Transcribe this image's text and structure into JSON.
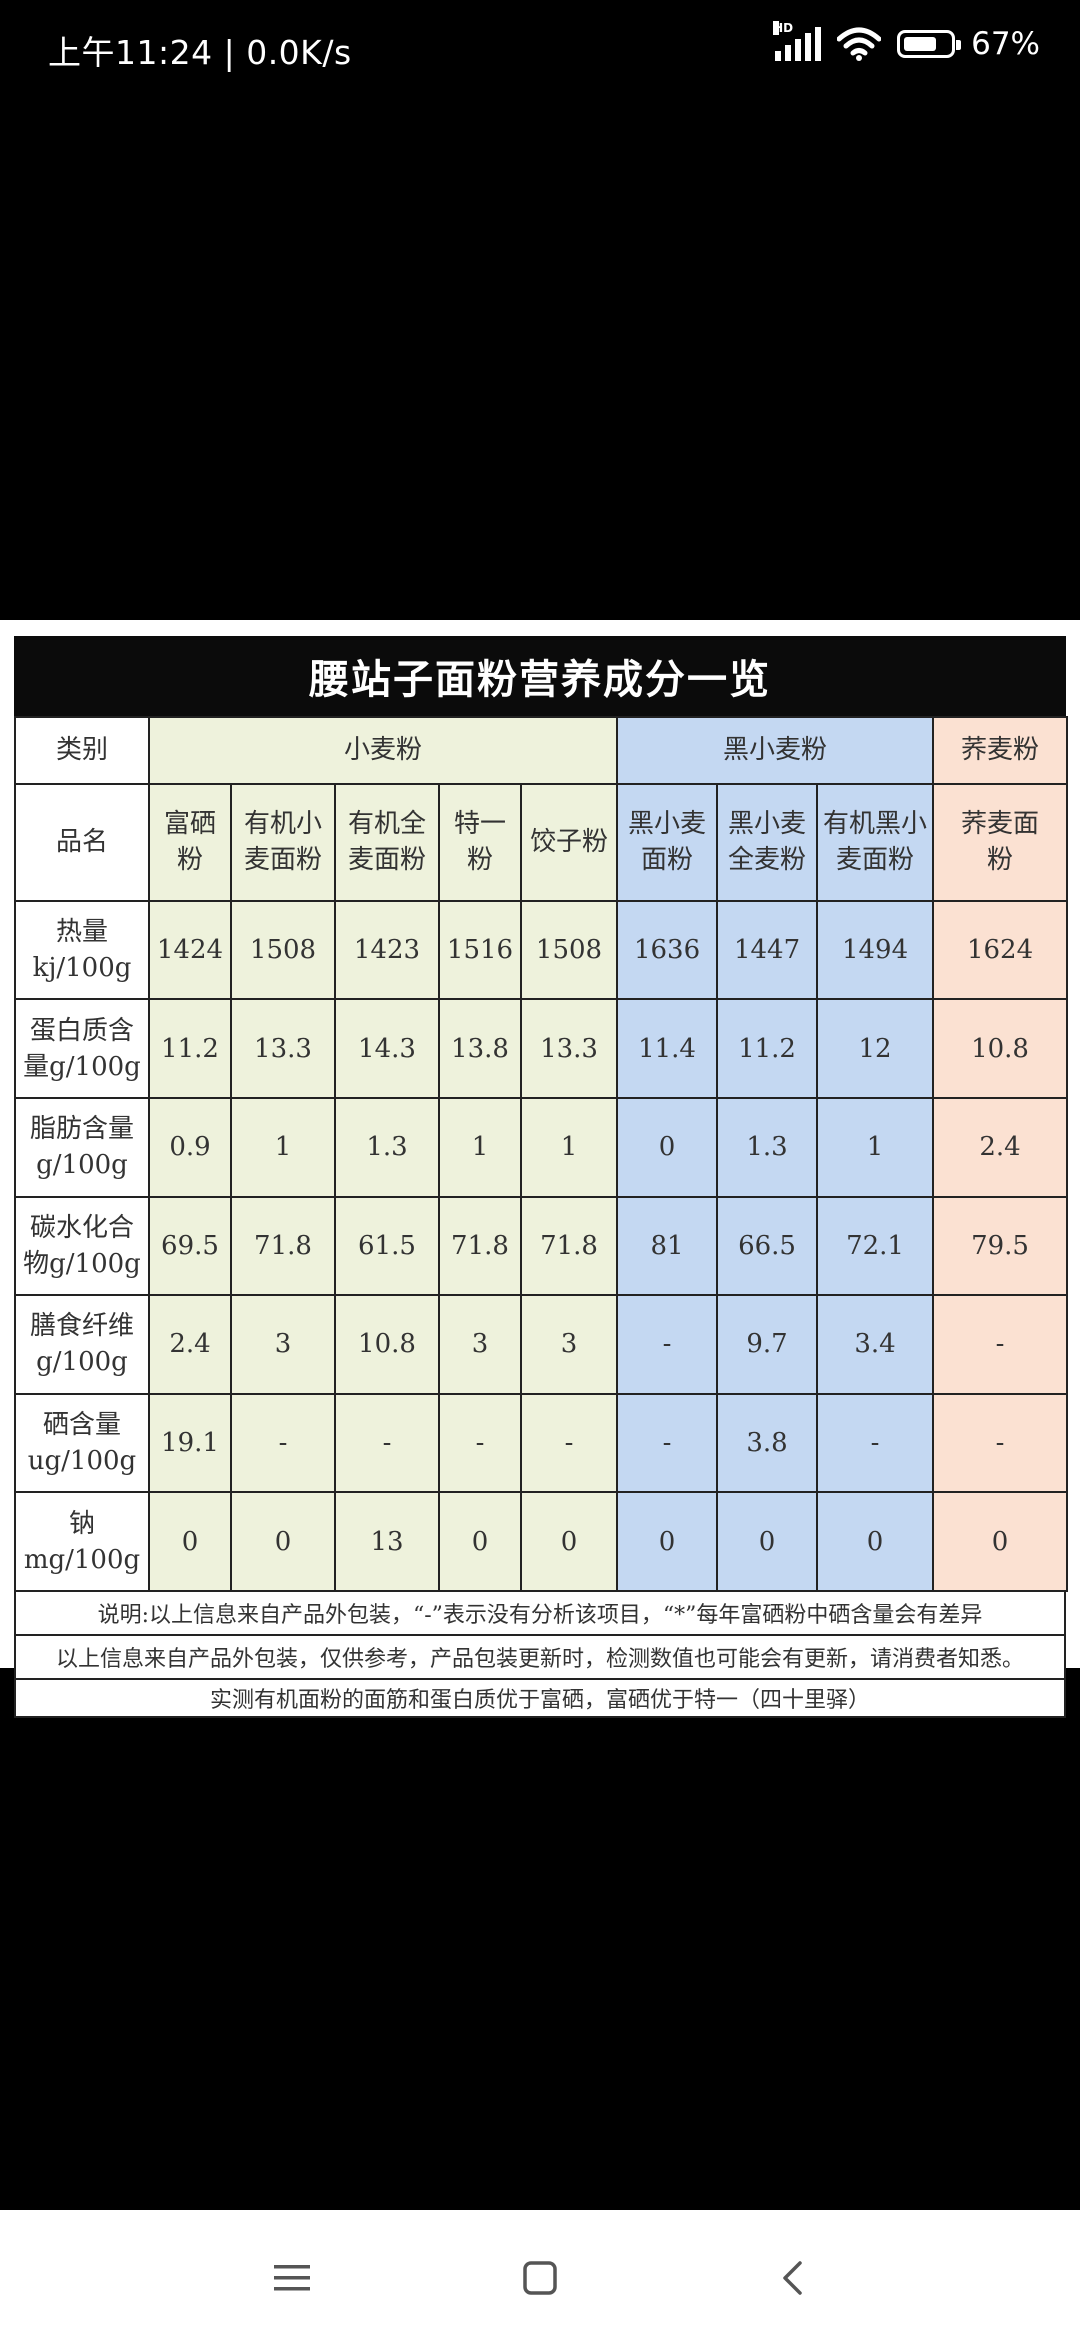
{
  "status": {
    "time": "上午11:24 | 0.0K/s",
    "network": "HD",
    "battery": "67%"
  },
  "sheet": {
    "title": "腰站子面粉营养成分一览",
    "category_label": "类别",
    "name_label": "品名",
    "groups": [
      "小麦粉",
      "黑小麦粉",
      "荞麦粉"
    ],
    "products": [
      {
        "l1": "富硒粉",
        "l2": ""
      },
      {
        "l1": "有机小",
        "l2": "麦面粉"
      },
      {
        "l1": "有机全",
        "l2": "麦面粉"
      },
      {
        "l1": "特一粉",
        "l2": ""
      },
      {
        "l1": "饺子粉",
        "l2": ""
      },
      {
        "l1": "黑小麦",
        "l2": "面粉"
      },
      {
        "l1": "黑小麦",
        "l2": "全麦粉"
      },
      {
        "l1": "有机黑小",
        "l2": "麦面粉"
      },
      {
        "l1": "荞麦面",
        "l2": "粉"
      }
    ],
    "rows": [
      {
        "l1": "热量",
        "l2": "kj/100g",
        "values": [
          "1424",
          "1508",
          "1423",
          "1516",
          "1508",
          "1636",
          "1447",
          "1494",
          "1624"
        ]
      },
      {
        "l1": "蛋白质含",
        "l2": "量g/100g",
        "values": [
          "11.2",
          "13.3",
          "14.3",
          "13.8",
          "13.3",
          "11.4",
          "11.2",
          "12",
          "10.8"
        ]
      },
      {
        "l1": "脂肪含量",
        "l2": "g/100g",
        "values": [
          "0.9",
          "1",
          "1.3",
          "1",
          "1",
          "0",
          "1.3",
          "1",
          "2.4"
        ]
      },
      {
        "l1": "碳水化合",
        "l2": "物g/100g",
        "values": [
          "69.5",
          "71.8",
          "61.5",
          "71.8",
          "71.8",
          "81",
          "66.5",
          "72.1",
          "79.5"
        ]
      },
      {
        "l1": "膳食纤维",
        "l2": "g/100g",
        "values": [
          "2.4",
          "3",
          "10.8",
          "3",
          "3",
          "-",
          "9.7",
          "3.4",
          "-"
        ]
      },
      {
        "l1": "硒含量",
        "l2": "ug/100g",
        "values": [
          "19.1",
          "-",
          "-",
          "-",
          "-",
          "-",
          "3.8",
          "-",
          "-"
        ]
      },
      {
        "l1": "钠",
        "l2": "mg/100g",
        "values": [
          "0",
          "0",
          "13",
          "0",
          "0",
          "0",
          "0",
          "0",
          "0"
        ]
      }
    ],
    "notes": [
      "说明:以上信息来自产品外包装，“-”表示没有分析该项目，“*”每年富硒粉中硒含量会有差异",
      "以上信息来自产品外包装，仅供参考，产品包装更新时，检测数值也可能会有更新，请消费者知悉。",
      "实测有机面粉的面筋和蛋白质优于富硒，富硒优于特一（四十里驿）"
    ]
  },
  "nav": {
    "icons": [
      "menu-icon",
      "home-square-icon",
      "back-chevron-icon"
    ]
  }
}
